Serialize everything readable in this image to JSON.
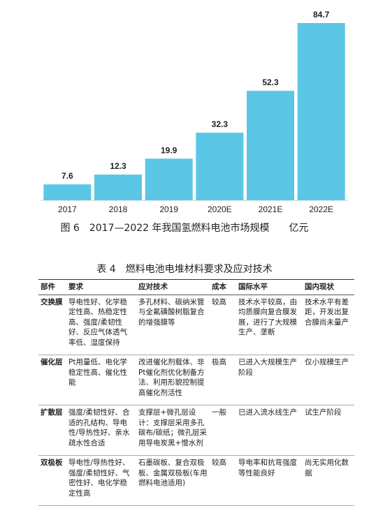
{
  "chart_data": {
    "type": "bar",
    "title": "图 6　2017—2022 年我国氢燃料电池市场规模　　亿元",
    "categories": [
      "2017",
      "2018",
      "2019",
      "2020E",
      "2021E",
      "2022E"
    ],
    "values": [
      7.6,
      12.3,
      19.9,
      32.3,
      52.3,
      84.7
    ],
    "color": "#5cc6e6"
  },
  "table": {
    "title": "表 4　燃料电池电堆材料要求及应对技术",
    "header": [
      "部件",
      "要求",
      "应对技术",
      "成本",
      "国际水平",
      "国内现状"
    ],
    "rows": [
      [
        "交换膜",
        "导电性好、化学稳定性高、热稳定性高、强度/柔韧性好、反应气体透气率低、湿度保持",
        "多孔材料、碳纳米管与全氟磺酸树脂复合的增强膜等",
        "较高",
        "技术水平较高，由均质膜向复合膜发展，进行了大规模生产、垄断",
        "技术水平有差距，开发出复合膜尚未量产"
      ],
      [
        "催化层",
        "Pt用量低、电化学稳定性高、催化性能",
        "改进催化剂载体、非Pt催化剂优化制备方法、利用形貌控制提高催化剂活性",
        "极高",
        "已进入大规模生产阶段",
        "仅小规模生产"
      ],
      [
        "扩散层",
        "强度/柔韧性好、合适的孔结构、导电性/导热性好、亲水疏水性合适",
        "支撑层+微孔层设计：支撑层采用多孔碳布/碳纸；微孔层采用导电炭黑+憎水剂",
        "一般",
        "已进入流水线生产",
        "试生产阶段"
      ],
      [
        "双极板",
        "导电性/导热性好、强度/柔韧性好、气密性好、电化学稳定性高",
        "石墨碳板、复合双极板、金属双极板(车用燃料电池适用)",
        "较高",
        "导电率和抗弯强度等性能良好",
        "尚无实用化数据"
      ]
    ]
  }
}
